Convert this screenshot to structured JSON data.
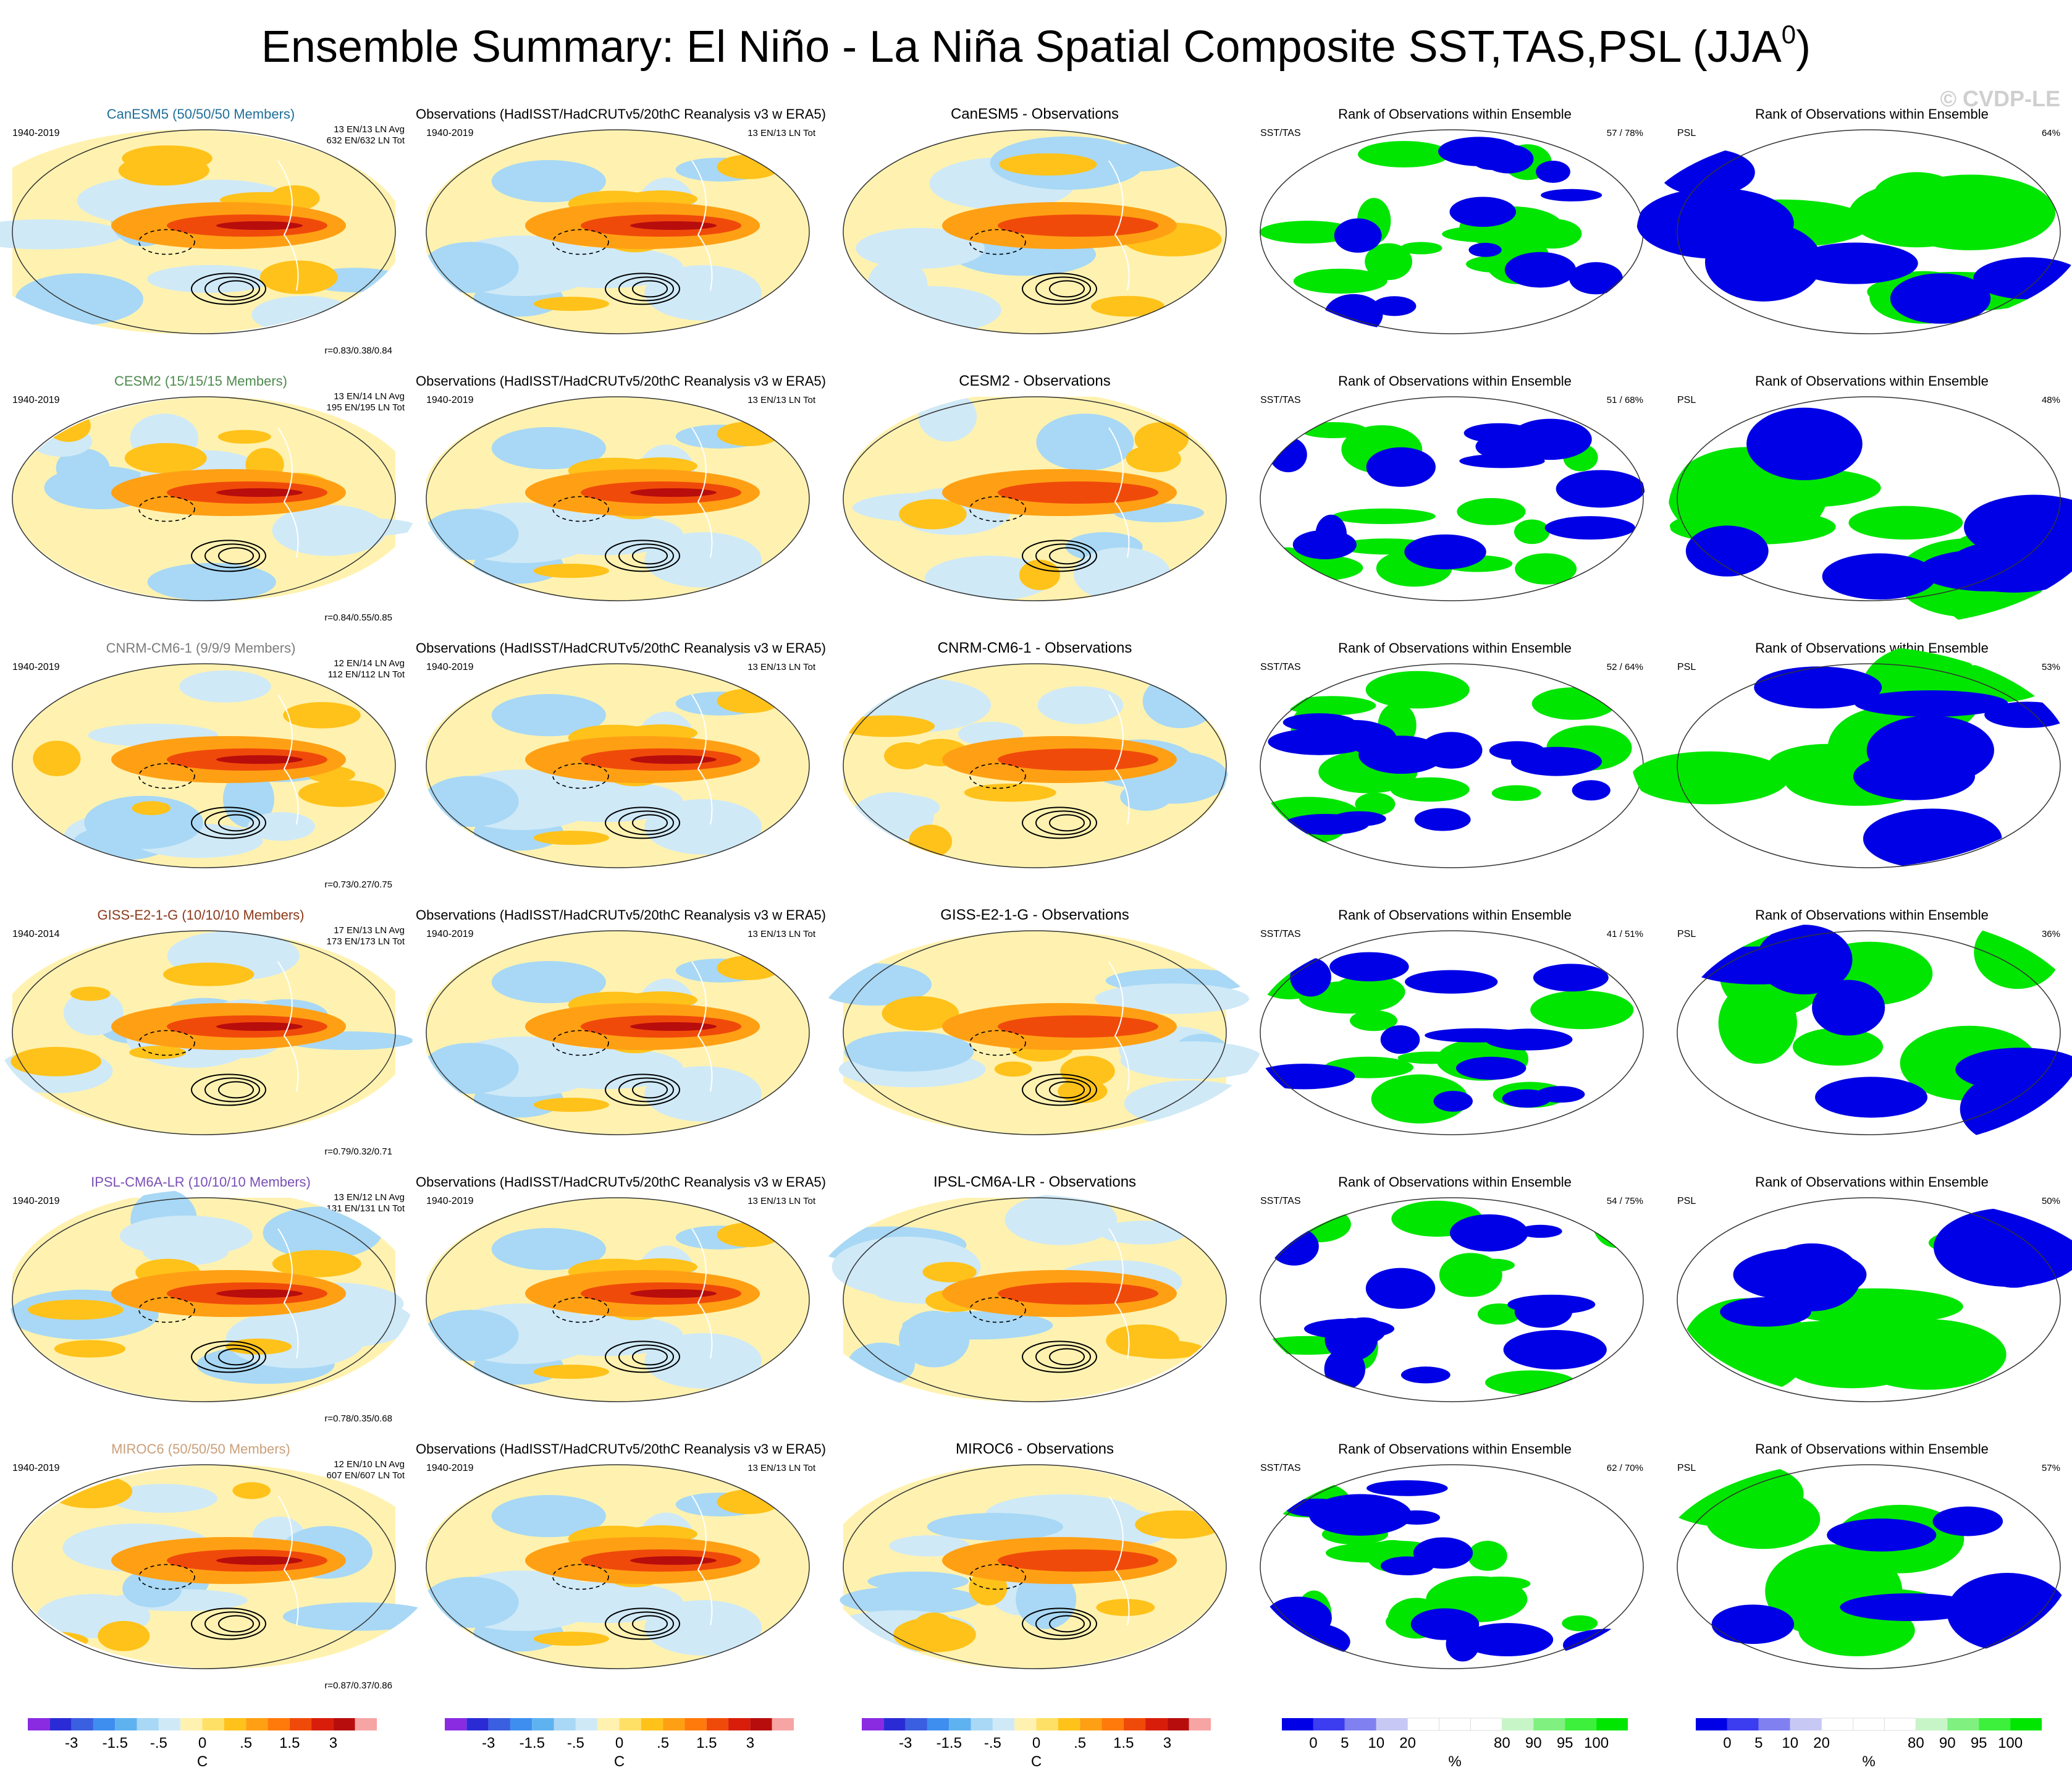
{
  "title": "Ensemble Summary: El Niño - La Niña Spatial Composite SST,TAS,PSL (JJA",
  "title_superscript": "0",
  "title_close": ")",
  "watermark": "© CVDP-LE",
  "rank_header": "Rank of Observations within Ensemble",
  "rank_left_sst": "SST/TAS",
  "rank_left_psl": "PSL",
  "obs_header": "Observations (HadISST/HadCRUTv5/20thC Reanalysis v3 w ERA5)",
  "obs_period": "1940-2019",
  "obs_counts": "13 EN/13 LN Tot",
  "rows": [
    {
      "model_label": "CanESM5 (50/50/50 Members)",
      "model_color": "#1f6f9a",
      "period": "1940-2019",
      "avg": "13 EN/13 LN Avg",
      "tot": "632 EN/632 LN Tot",
      "r": "r=0.83/0.38/0.84",
      "diff_title": "CanESM5 - Observations",
      "sst_pct": "57 / 78%",
      "psl_pct": "64%",
      "seed": 1
    },
    {
      "model_label": "CESM2 (15/15/15 Members)",
      "model_color": "#4e8a4e",
      "period": "1940-2019",
      "avg": "13 EN/14 LN Avg",
      "tot": "195 EN/195 LN Tot",
      "r": "r=0.84/0.55/0.85",
      "diff_title": "CESM2 - Observations",
      "sst_pct": "51 / 68%",
      "psl_pct": "48%",
      "seed": 2
    },
    {
      "model_label": "CNRM-CM6-1 (9/9/9 Members)",
      "model_color": "#7b7b7b",
      "period": "1940-2019",
      "avg": "12 EN/14 LN Avg",
      "tot": "112 EN/112 LN Tot",
      "r": "r=0.73/0.27/0.75",
      "diff_title": "CNRM-CM6-1 - Observations",
      "sst_pct": "52 / 64%",
      "psl_pct": "53%",
      "seed": 3
    },
    {
      "model_label": "GISS-E2-1-G (10/10/10 Members)",
      "model_color": "#8b3a1a",
      "period": "1940-2014",
      "avg": "17 EN/13 LN Avg",
      "tot": "173 EN/173 LN Tot",
      "r": "r=0.79/0.32/0.71",
      "diff_title": "GISS-E2-1-G - Observations",
      "sst_pct": "41 / 51%",
      "psl_pct": "36%",
      "seed": 4
    },
    {
      "model_label": "IPSL-CM6A-LR (10/10/10 Members)",
      "model_color": "#7a4fb5",
      "period": "1940-2019",
      "avg": "13 EN/12 LN Avg",
      "tot": "131 EN/131 LN Tot",
      "r": "r=0.78/0.35/0.68",
      "diff_title": "IPSL-CM6A-LR - Observations",
      "sst_pct": "54 / 75%",
      "psl_pct": "50%",
      "seed": 5
    },
    {
      "model_label": "MIROC6 (50/50/50 Members)",
      "model_color": "#caa07a",
      "period": "1940-2019",
      "avg": "12 EN/10 LN Avg",
      "tot": "607 EN/607 LN Tot",
      "r": "r=0.87/0.37/0.86",
      "diff_title": "MIROC6 - Observations",
      "sst_pct": "62 / 70%",
      "psl_pct": "57%",
      "seed": 6
    }
  ],
  "colorbar_temp": {
    "colors": [
      "#8a2be2",
      "#2b2bd6",
      "#3a5fe0",
      "#3e8ef0",
      "#5fb2f0",
      "#a8d8f5",
      "#cfe9f7",
      "#fff2b0",
      "#ffe066",
      "#ffc21a",
      "#ffa014",
      "#ff7a0a",
      "#f04a0a",
      "#d81e0a",
      "#b80d0d",
      "#f6a4a4"
    ],
    "labels": [
      "-3",
      "-1.5",
      "-.5",
      "0",
      ".5",
      "1.5",
      "3"
    ],
    "unit": "C"
  },
  "colorbar_rank": {
    "colors": [
      "#0000e6",
      "#3c3cf0",
      "#8080f0",
      "#c8c8f5",
      "#ffffff",
      "#ffffff",
      "#ffffff",
      "#c8f5c8",
      "#80f080",
      "#3cf03c",
      "#00e600"
    ],
    "labels": [
      "0",
      "5",
      "10",
      "20",
      "80",
      "90",
      "95",
      "100"
    ],
    "unit": "%"
  }
}
